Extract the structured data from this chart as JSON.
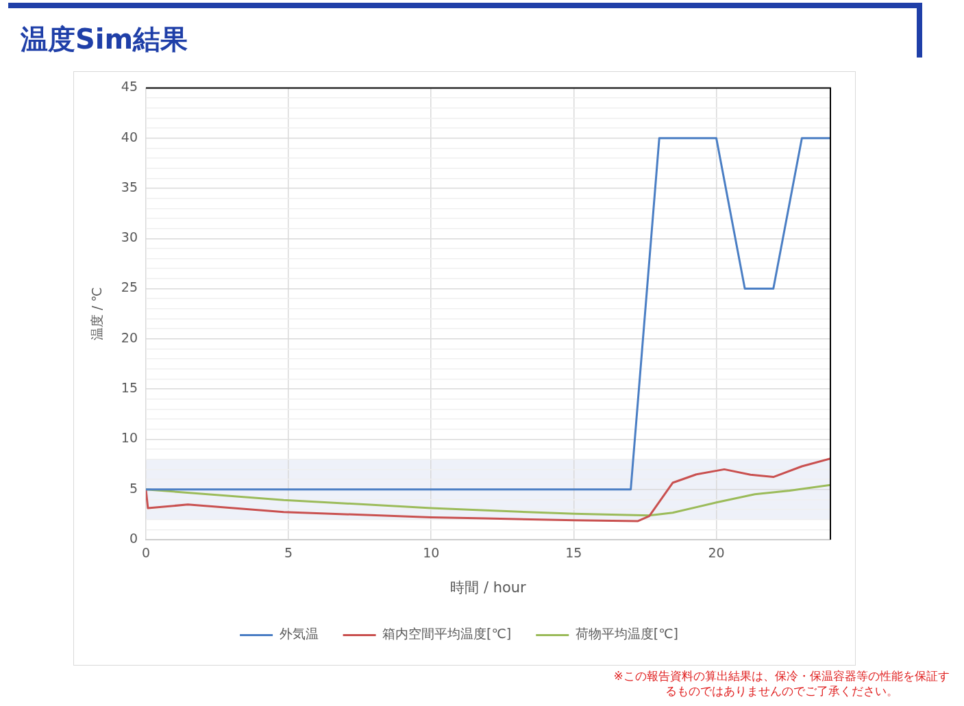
{
  "chart_data": {
    "type": "line",
    "title": "温度Sim結果",
    "xlabel": "時間 / hour",
    "ylabel": "温度 / ℃",
    "xlim": [
      0,
      24
    ],
    "xticks": [
      0,
      5,
      10,
      15,
      20
    ],
    "ylim": [
      0,
      45
    ],
    "yticks": [
      0,
      {
        "value": 1,
        "label": null
      },
      {
        "value": 2,
        "label": null
      },
      {
        "value": 3,
        "label": null
      },
      {
        "value": 4,
        "label": null
      },
      5,
      {
        "value": 6,
        "label": null
      },
      {
        "value": 7,
        "label": null
      },
      {
        "value": 8,
        "label": null
      },
      {
        "value": 9,
        "label": null
      },
      10,
      {
        "value": 11,
        "label": null
      },
      {
        "value": 12,
        "label": null
      },
      {
        "value": 13,
        "label": null
      },
      {
        "value": 14,
        "label": null
      },
      15,
      {
        "value": 16,
        "label": null
      },
      {
        "value": 17,
        "label": null
      },
      {
        "value": 18,
        "label": null
      },
      {
        "value": 19,
        "label": null
      },
      20,
      {
        "value": 21,
        "label": null
      },
      {
        "value": 22,
        "label": null
      },
      {
        "value": 23,
        "label": null
      },
      {
        "value": 24,
        "label": null
      },
      25,
      {
        "value": 26,
        "label": null
      },
      {
        "value": 27,
        "label": null
      },
      {
        "value": 28,
        "label": null
      },
      {
        "value": 29,
        "label": null
      },
      30,
      {
        "value": 31,
        "label": null
      },
      {
        "value": 32,
        "label": null
      },
      {
        "value": 33,
        "label": null
      },
      {
        "value": 34,
        "label": null
      },
      35,
      {
        "value": 36,
        "label": null
      },
      {
        "value": 37,
        "label": null
      },
      {
        "value": 38,
        "label": null
      },
      {
        "value": 39,
        "label": null
      },
      40,
      {
        "value": 41,
        "label": null
      },
      {
        "value": 42,
        "label": null
      },
      {
        "value": 43,
        "label": null
      },
      {
        "value": 44,
        "label": null
      },
      45
    ],
    "grid": true,
    "legend": "bottom",
    "marker": "none",
    "line_style": "solid",
    "bands": [
      {
        "axis": "y",
        "from": 2,
        "to": 8,
        "color": "#eef1f9"
      }
    ],
    "series": [
      {
        "name": "外気温",
        "color": "#4a7ec4",
        "x": [
          0,
          17,
          18,
          20,
          21,
          22,
          23,
          24
        ],
        "values": [
          5,
          5,
          40,
          40,
          25,
          25,
          40,
          40
        ]
      },
      {
        "name": "箱内空間平均温度[℃]",
        "color": "#c9504f",
        "x": [
          0,
          0.07,
          1.47,
          4.83,
          10,
          11.9,
          15.02,
          17.24,
          17.65,
          18.47,
          19.3,
          20.28,
          21.2,
          22,
          23,
          24
        ],
        "values": [
          5,
          3.14,
          3.49,
          2.75,
          2.22,
          2.11,
          1.93,
          1.84,
          2.34,
          5.66,
          6.5,
          7,
          6.47,
          6.24,
          7.3,
          8.07
        ]
      },
      {
        "name": "荷物平均温度[℃]",
        "color": "#9bbb59",
        "x": [
          0,
          4.83,
          10,
          11.9,
          15.02,
          17.65,
          18.47,
          20.03,
          21.35,
          22.57,
          24
        ],
        "values": [
          5,
          3.94,
          3.14,
          2.91,
          2.57,
          2.41,
          2.68,
          3.72,
          4.52,
          4.88,
          5.44
        ]
      }
    ],
    "annotations": [
      "※この報告資料の算出結果は、保冷・保温容器等の性能を保証するものではありませんのでご了承ください。"
    ]
  }
}
